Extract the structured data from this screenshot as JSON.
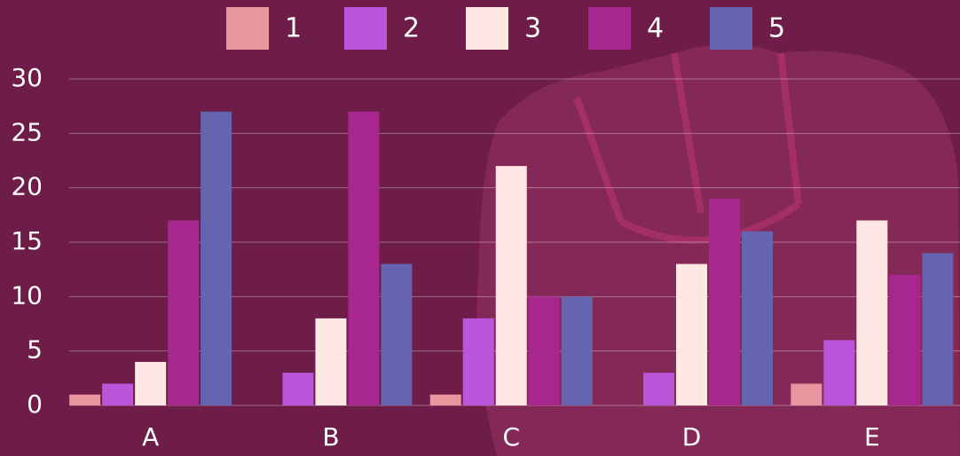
{
  "chart_data": {
    "type": "bar",
    "categories": [
      "A",
      "B",
      "C",
      "D",
      "E"
    ],
    "series": [
      {
        "name": "1",
        "color": "#e8959f",
        "values": [
          1,
          0,
          1,
          0,
          2
        ]
      },
      {
        "name": "2",
        "color": "#bb55d9",
        "values": [
          2,
          3,
          8,
          3,
          6
        ]
      },
      {
        "name": "3",
        "color": "#ffe8e3",
        "values": [
          4,
          8,
          22,
          13,
          17
        ]
      },
      {
        "name": "4",
        "color": "#a8268f",
        "values": [
          17,
          27,
          10,
          19,
          12
        ]
      },
      {
        "name": "5",
        "color": "#6464b0",
        "values": [
          27,
          13,
          10,
          16,
          14
        ]
      }
    ],
    "ylim": [
      0,
      30
    ],
    "yticks": [
      0,
      5,
      10,
      15,
      20,
      25,
      30
    ],
    "grid": true,
    "legend": "top"
  }
}
